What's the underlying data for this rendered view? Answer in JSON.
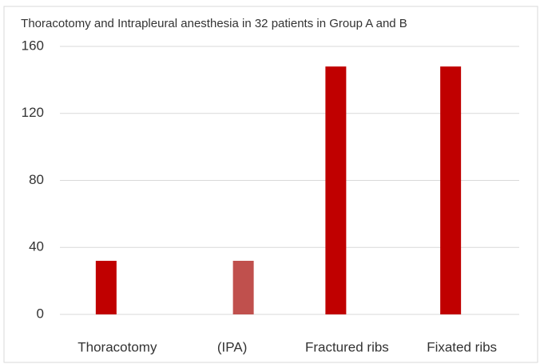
{
  "chart_data": {
    "type": "bar",
    "title": "Thoracotomy and Intrapleural anesthesia in 32 patients in Group A and B",
    "categories": [
      "Thoracotomy",
      "(IPA)",
      "Fractured ribs",
      "Fixated ribs"
    ],
    "series": [
      {
        "color": "#c00000",
        "values": [
          32,
          null,
          148,
          148
        ]
      },
      {
        "color": "#c0504d",
        "values": [
          null,
          32,
          null,
          null
        ]
      }
    ],
    "ylim": [
      0,
      160
    ],
    "yticks": [
      0,
      40,
      80,
      120,
      160
    ],
    "grid": true
  }
}
